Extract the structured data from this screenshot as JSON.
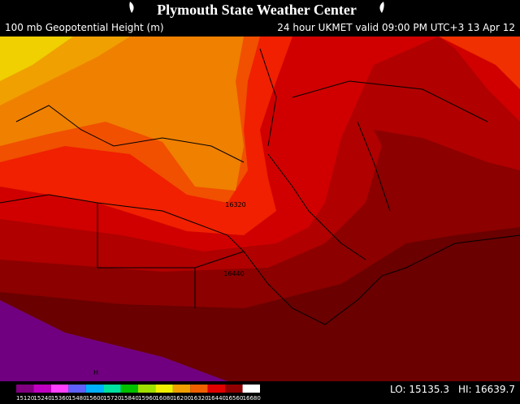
{
  "header": {
    "title": "Plymouth State Weather Center",
    "field": "100 mb Geopotential Height (m)",
    "valid": "24 hour UKMET valid 09:00 PM UTC+3 13 Apr 12"
  },
  "contour_labels": [
    "16320",
    "16440"
  ],
  "high_marker": "H",
  "stats": {
    "lo": "LO: 15135.3",
    "hi": "HI: 16639.7"
  },
  "colorbar": {
    "labels": [
      "15120",
      "15240",
      "15360",
      "15480",
      "15600",
      "15720",
      "15840",
      "15960",
      "16080",
      "16200",
      "16320",
      "16440",
      "16560",
      "16680"
    ],
    "colors": [
      "#800080",
      "#c000c0",
      "#ff40ff",
      "#6060ff",
      "#00b0ff",
      "#00e0a0",
      "#00c000",
      "#a0e000",
      "#f0f000",
      "#f0a000",
      "#f06000",
      "#e00000",
      "#900000",
      "#ffffff"
    ]
  }
}
